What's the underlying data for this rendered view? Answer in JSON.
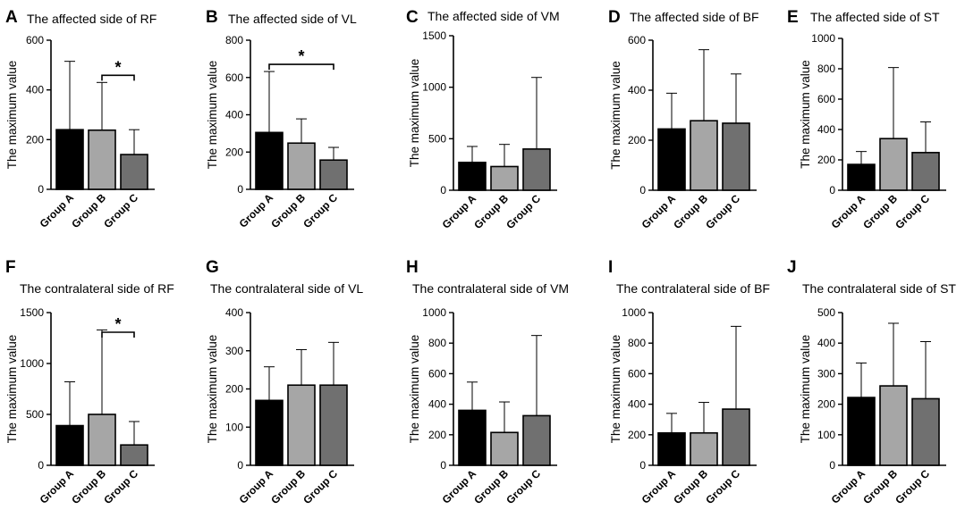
{
  "chart_data": [
    {
      "letter": "A",
      "type": "bar",
      "title": "The affected side of RF",
      "ylabel": "The maximum  value",
      "ylim": [
        0,
        600
      ],
      "yticks": [
        0,
        200,
        400,
        600
      ],
      "categories": [
        "Group A",
        "Group B",
        "Group C"
      ],
      "values": [
        240,
        238,
        140
      ],
      "errors": [
        515,
        430,
        240
      ],
      "colors": [
        "#000000",
        "#a6a6a6",
        "#707070"
      ],
      "significance": [
        {
          "from": 1,
          "to": 2,
          "label": "*"
        }
      ]
    },
    {
      "letter": "B",
      "type": "bar",
      "title": "The affected side of VL",
      "ylabel": "The maximum  value",
      "ylim": [
        0,
        800
      ],
      "yticks": [
        0,
        200,
        400,
        600,
        800
      ],
      "categories": [
        "Group A",
        "Group B",
        "Group C"
      ],
      "values": [
        305,
        248,
        157
      ],
      "errors": [
        632,
        378,
        225
      ],
      "colors": [
        "#000000",
        "#a6a6a6",
        "#707070"
      ],
      "significance": [
        {
          "from": 0,
          "to": 2,
          "label": "*"
        }
      ]
    },
    {
      "letter": "C",
      "type": "bar",
      "title": "The affected side of VM",
      "ylabel": "The maximum  value",
      "ylim": [
        0,
        1500
      ],
      "yticks": [
        0,
        500,
        1000,
        1500
      ],
      "categories": [
        "Group A",
        "Group B",
        "Group C"
      ],
      "values": [
        270,
        230,
        400
      ],
      "errors": [
        425,
        445,
        1095
      ],
      "colors": [
        "#000000",
        "#a6a6a6",
        "#707070"
      ],
      "significance": []
    },
    {
      "letter": "D",
      "type": "bar",
      "title": "The affected side of BF",
      "ylabel": "The maximum  value",
      "ylim": [
        0,
        600
      ],
      "yticks": [
        0,
        200,
        400,
        600
      ],
      "categories": [
        "Group A",
        "Group B",
        "Group C"
      ],
      "values": [
        245,
        278,
        268
      ],
      "errors": [
        388,
        562,
        465
      ],
      "colors": [
        "#000000",
        "#a6a6a6",
        "#707070"
      ],
      "significance": []
    },
    {
      "letter": "E",
      "type": "bar",
      "title": "The affected side of ST",
      "ylabel": "The maximum  value",
      "ylim": [
        0,
        1000
      ],
      "yticks": [
        0,
        200,
        400,
        600,
        800,
        1000
      ],
      "categories": [
        "Group A",
        "Group B",
        "Group C"
      ],
      "values": [
        170,
        340,
        248
      ],
      "errors": [
        255,
        808,
        450
      ],
      "colors": [
        "#000000",
        "#a6a6a6",
        "#707070"
      ],
      "significance": []
    },
    {
      "letter": "F",
      "type": "bar",
      "title": "The contralateral side of RF",
      "ylabel": "The maximum  value",
      "ylim": [
        0,
        1500
      ],
      "yticks": [
        0,
        500,
        1000,
        1500
      ],
      "categories": [
        "Group A",
        "Group B",
        "Group C"
      ],
      "values": [
        390,
        500,
        200
      ],
      "errors": [
        820,
        1330,
        430
      ],
      "colors": [
        "#000000",
        "#a6a6a6",
        "#707070"
      ],
      "significance": [
        {
          "from": 1,
          "to": 2,
          "label": "*"
        }
      ]
    },
    {
      "letter": "G",
      "type": "bar",
      "title": "The contralateral side of VL",
      "ylabel": "The maximum  value",
      "ylim": [
        0,
        400
      ],
      "yticks": [
        0,
        100,
        200,
        300,
        400
      ],
      "categories": [
        "Group A",
        "Group B",
        "Group C"
      ],
      "values": [
        170,
        210,
        210
      ],
      "errors": [
        258,
        303,
        322
      ],
      "colors": [
        "#000000",
        "#a6a6a6",
        "#707070"
      ],
      "significance": []
    },
    {
      "letter": "H",
      "type": "bar",
      "title": "The contralateral side of VM",
      "ylabel": "The maximum  value",
      "ylim": [
        0,
        1000
      ],
      "yticks": [
        0,
        200,
        400,
        600,
        800,
        1000
      ],
      "categories": [
        "Group A",
        "Group B",
        "Group C"
      ],
      "values": [
        360,
        215,
        325
      ],
      "errors": [
        545,
        415,
        850
      ],
      "colors": [
        "#000000",
        "#a6a6a6",
        "#707070"
      ],
      "significance": []
    },
    {
      "letter": "I",
      "type": "bar",
      "title": "The contralateral side of BF",
      "ylabel": "The maximum  value",
      "ylim": [
        0,
        1000
      ],
      "yticks": [
        0,
        200,
        400,
        600,
        800,
        1000
      ],
      "categories": [
        "Group A",
        "Group B",
        "Group C"
      ],
      "values": [
        212,
        212,
        368
      ],
      "errors": [
        340,
        412,
        910
      ],
      "colors": [
        "#000000",
        "#a6a6a6",
        "#707070"
      ],
      "significance": []
    },
    {
      "letter": "J",
      "type": "bar",
      "title": "The contralateral side of ST",
      "ylabel": "The maximum  value",
      "ylim": [
        0,
        500
      ],
      "yticks": [
        0,
        100,
        200,
        300,
        400,
        500
      ],
      "categories": [
        "Group A",
        "Group B",
        "Group C"
      ],
      "values": [
        222,
        260,
        218
      ],
      "errors": [
        335,
        465,
        405
      ],
      "colors": [
        "#000000",
        "#a6a6a6",
        "#707070"
      ],
      "significance": []
    }
  ]
}
